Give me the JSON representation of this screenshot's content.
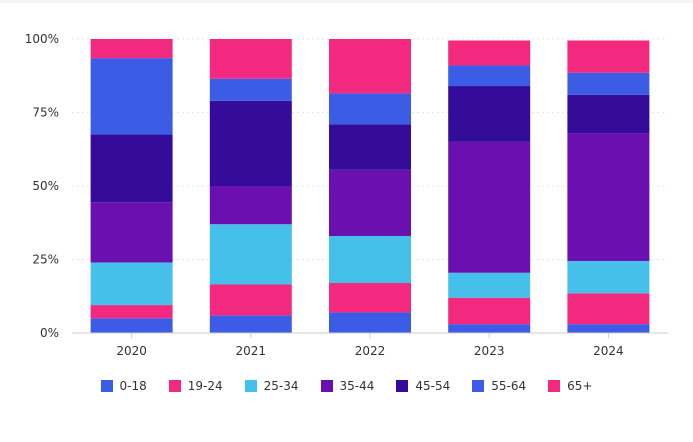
{
  "chart_data": {
    "type": "bar",
    "stacked": true,
    "percent": true,
    "categories": [
      "2020",
      "2021",
      "2022",
      "2023",
      "2024"
    ],
    "y_ticks": [
      "0%",
      "25%",
      "50%",
      "75%",
      "100%"
    ],
    "ylim": [
      0,
      100
    ],
    "grid": true,
    "legend_position": "bottom",
    "series": [
      {
        "name": "0-18",
        "color": "#3d5ce6",
        "values": [
          5,
          6,
          7,
          3,
          3
        ]
      },
      {
        "name": "19-24",
        "color": "#f2297e",
        "values": [
          4.5,
          10.5,
          10,
          9,
          10.5
        ]
      },
      {
        "name": "25-34",
        "color": "#44c0eb",
        "values": [
          14.5,
          20.5,
          16,
          8.5,
          11
        ]
      },
      {
        "name": "35-44",
        "color": "#6a0fb0",
        "values": [
          20.5,
          13,
          22.5,
          44.5,
          43.5
        ]
      },
      {
        "name": "45-54",
        "color": "#340c99",
        "values": [
          23,
          29,
          15.5,
          19,
          13
        ]
      },
      {
        "name": "55-64",
        "color": "#3d5ce6",
        "values": [
          26,
          7.5,
          10.5,
          7,
          7.5
        ]
      },
      {
        "name": "65+",
        "color": "#f2297e",
        "values": [
          6.5,
          13.5,
          18.5,
          8.5,
          11
        ]
      }
    ]
  }
}
